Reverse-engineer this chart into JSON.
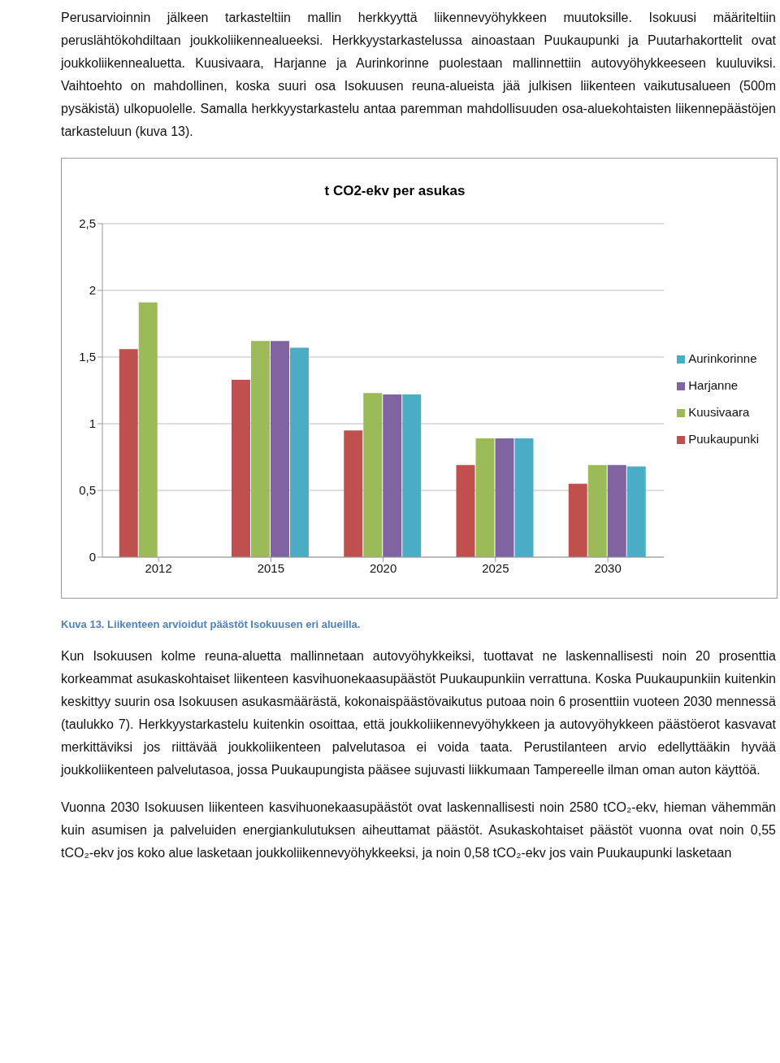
{
  "chart_data": {
    "type": "bar",
    "title": "t CO2-ekv per asukas",
    "categories": [
      "2012",
      "2015",
      "2020",
      "2025",
      "2030"
    ],
    "series": [
      {
        "name": "Puukaupunki",
        "color": "#c0504d",
        "values": [
          1.56,
          1.33,
          0.95,
          0.69,
          0.55
        ]
      },
      {
        "name": "Kuusivaara",
        "color": "#9bbb59",
        "values": [
          1.91,
          1.62,
          1.23,
          0.89,
          0.69
        ]
      },
      {
        "name": "Harjanne",
        "color": "#8064a2",
        "values": [
          null,
          1.62,
          1.22,
          0.89,
          0.69
        ]
      },
      {
        "name": "Aurinkorinne",
        "color": "#4bacc6",
        "values": [
          null,
          1.57,
          1.22,
          0.89,
          0.68
        ]
      }
    ],
    "ylim": [
      0,
      2.5
    ],
    "yticks": [
      0,
      {
        "value": 0.5,
        "label": "0,5"
      },
      1,
      {
        "value": 1.5,
        "label": "1,5"
      },
      2,
      {
        "value": 2.5,
        "label": "2,5"
      }
    ],
    "grid": "y",
    "legend": "right",
    "annotations": [
      "Perusarvioinnin jälkeen tarkasteltiin mallin herkkyyttä liikennevyöhykkeen muutoksille. Isokuusi määriteltiin peruslähtökohdiltaan joukkoliikennealueeksi. Herkkyystarkastelussa ainoastaan Puukaupunki ja Puutarhakorttelit ovat joukkoliikennealuetta. Kuusivaara, Harjanne ja Aurinkorinne puolestaan mallinnettiin autovyöhykkeeseen kuuluviksi. Vaihtoehto on mahdollinen, koska suuri osa Isokuusen reuna-alueista jää julkisen liikenteen vaikutusalueen (500m pysäkistä) ulkopuolelle. Samalla herkkyystarkastelu antaa paremman mahdollisuuden osa-aluekohtaisten liikennepäästöjen tarkasteluun (kuva 13).",
      "Kuva 13. Liikenteen arvioidut päästöt Isokuusen eri alueilla.",
      "Kun Isokuusen kolme reuna-aluetta mallinnetaan autovyöhykkeiksi, tuottavat ne laskennallisesti noin 20 prosenttia korkeammat asukaskohtaiset liikenteen kasvihuonekaasupäästöt Puukaupunkiin verrattuna. Koska Puukaupunkiin kuitenkin keskittyy suurin osa Isokuusen asukasmäärästä, kokonaispäästövaikutus putoaa noin 6 prosenttiin vuoteen 2030 mennessä (taulukko 7). Herkkyystarkastelu kuitenkin osoittaa, että joukkoliikennevyöhykkeen ja autovyöhykkeen päästöerot kasvavat merkittäviksi jos riittävää joukkoliikenteen palvelutasoa ei voida taata. Perustilanteen arvio edellyttääkin hyvää joukkoliikenteen palvelutasoa, jossa Puukaupungista pääsee sujuvasti liikkumaan Tampereelle ilman oman auton käyttöä.",
      "Vuonna 2030 Isokuusen liikenteen kasvihuonekaasupäästöt ovat laskennallisesti noin 2580 tCO₂-ekv, hieman vähemmän kuin asumisen ja palveluiden energiankulutuksen aiheuttamat päästöt. Asukaskohtaiset päästöt vuonna ovat noin 0,55 tCO₂-ekv jos koko alue lasketaan joukkoliikennevyöhykkeeksi, ja noin 0,58 tCO₂-ekv jos vain Puukaupunki lasketaan"
    ]
  }
}
